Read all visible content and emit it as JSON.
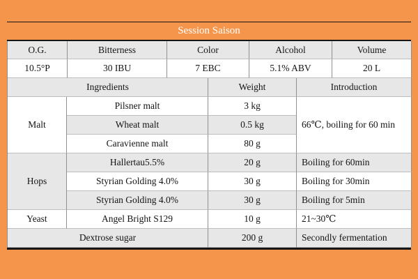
{
  "title": "Session Saison",
  "colors": {
    "background_orange": "#f5954b",
    "header_band_gray": "#e7e7e7",
    "rule_black": "#151515",
    "title_text": "#ffffff"
  },
  "specs": {
    "headers": [
      "O.G.",
      "Bitterness",
      "Color",
      "Alcohol",
      "Volume"
    ],
    "values": [
      "10.5°P",
      "30 IBU",
      "7 EBC",
      "5.1% ABV",
      "20 L"
    ]
  },
  "ingredients_table": {
    "headers": {
      "ingredients": "Ingredients",
      "weight": "Weight",
      "introduction": "Introduction"
    },
    "malt": {
      "category": "Malt",
      "rows": [
        {
          "name": "Pilsner malt",
          "weight": "3 kg"
        },
        {
          "name": "Wheat malt",
          "weight": "0.5 kg"
        },
        {
          "name": "Caravienne malt",
          "weight": "80 g"
        }
      ],
      "introduction": "66℃, boiling for 60 min"
    },
    "hops": {
      "category": "Hops",
      "rows": [
        {
          "name": "Hallertau5.5%",
          "weight": "20 g",
          "introduction": "Boiling for 60min"
        },
        {
          "name": "Styrian Golding 4.0%",
          "weight": "30 g",
          "introduction": "Boiling for 30min"
        },
        {
          "name": "Styrian Golding 4.0%",
          "weight": "30 g",
          "introduction": "Boiling for 5min"
        }
      ]
    },
    "yeast": {
      "category": "Yeast",
      "name": "Angel Bright S129",
      "weight": "10 g",
      "introduction": "21~30℃"
    },
    "sugar": {
      "name": "Dextrose sugar",
      "weight": "200 g",
      "introduction": "Secondly fermentation"
    }
  }
}
